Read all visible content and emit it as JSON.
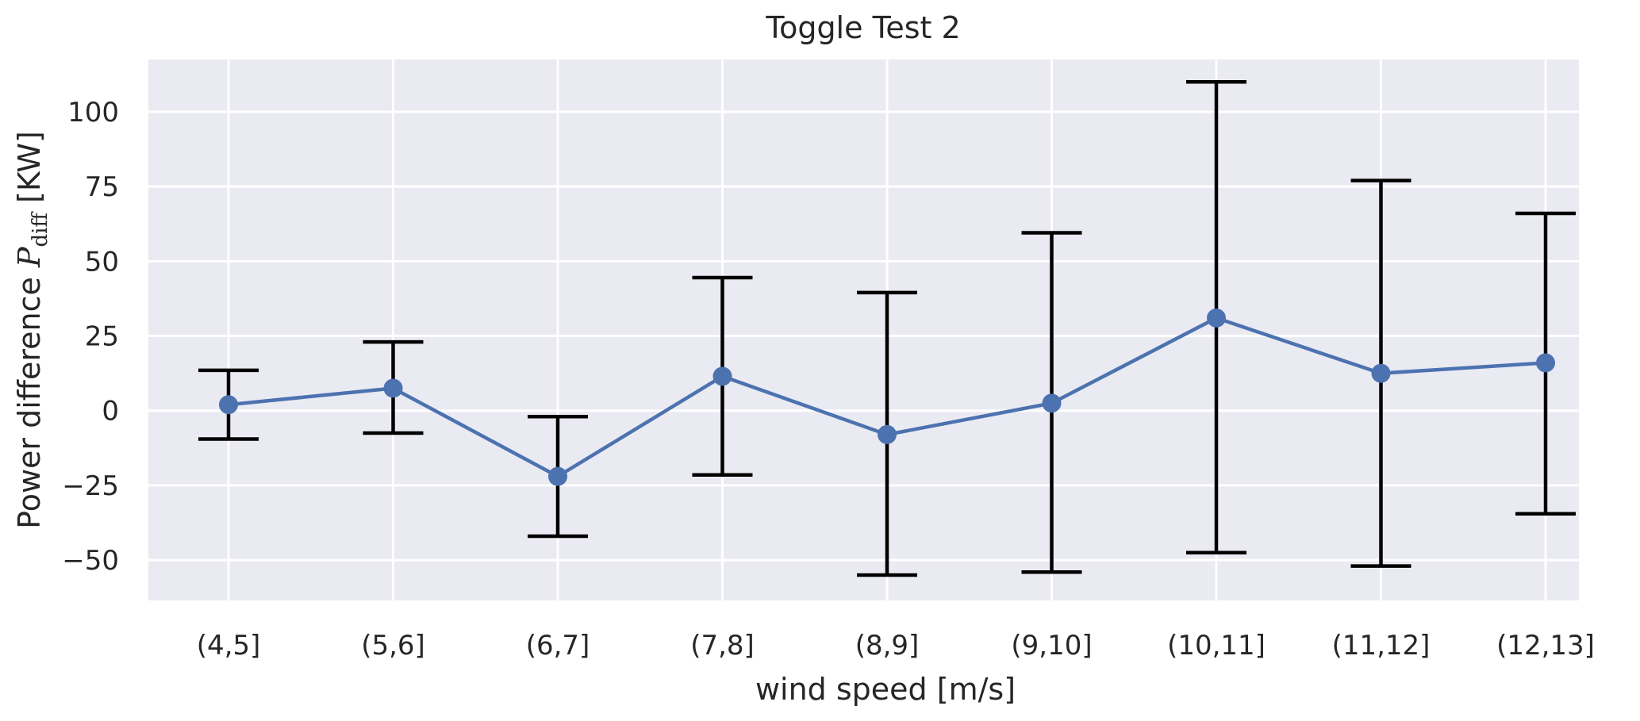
{
  "chart_data": {
    "type": "line",
    "title": "Toggle Test 2",
    "xlabel": "wind speed [m/s]",
    "ylabel": {
      "prefix": "Power difference ",
      "symbol": "P",
      "subscript": "diff",
      "suffix": " [KW]"
    },
    "categories": [
      "(4,5]",
      "(5,6]",
      "(6,7]",
      "(7,8]",
      "(8,9]",
      "(9,10]",
      "(10,11]",
      "(11,12]",
      "(12,13]"
    ],
    "series": [
      {
        "values": [
          2,
          7.5,
          -22,
          11.5,
          -8,
          2.5,
          31,
          12.5,
          16
        ],
        "error_low": [
          -9.5,
          -7.5,
          -42,
          -21.5,
          -55,
          -54,
          -47.5,
          -52,
          -34.5
        ],
        "error_high": [
          13.5,
          23,
          -2,
          44.5,
          39.5,
          59.5,
          110,
          77,
          66
        ]
      }
    ],
    "yticks": [
      -50,
      -25,
      0,
      25,
      50,
      75,
      100
    ],
    "ytick_labels": [
      "−50",
      "−25",
      "0",
      "25",
      "50",
      "75",
      "100"
    ],
    "ylim": [
      -63.5,
      117.5
    ],
    "grid": true,
    "colors": {
      "background": "#eaeaf2",
      "grid": "#ffffff",
      "line": "#4c72b0",
      "errorbar": "#000000"
    }
  }
}
